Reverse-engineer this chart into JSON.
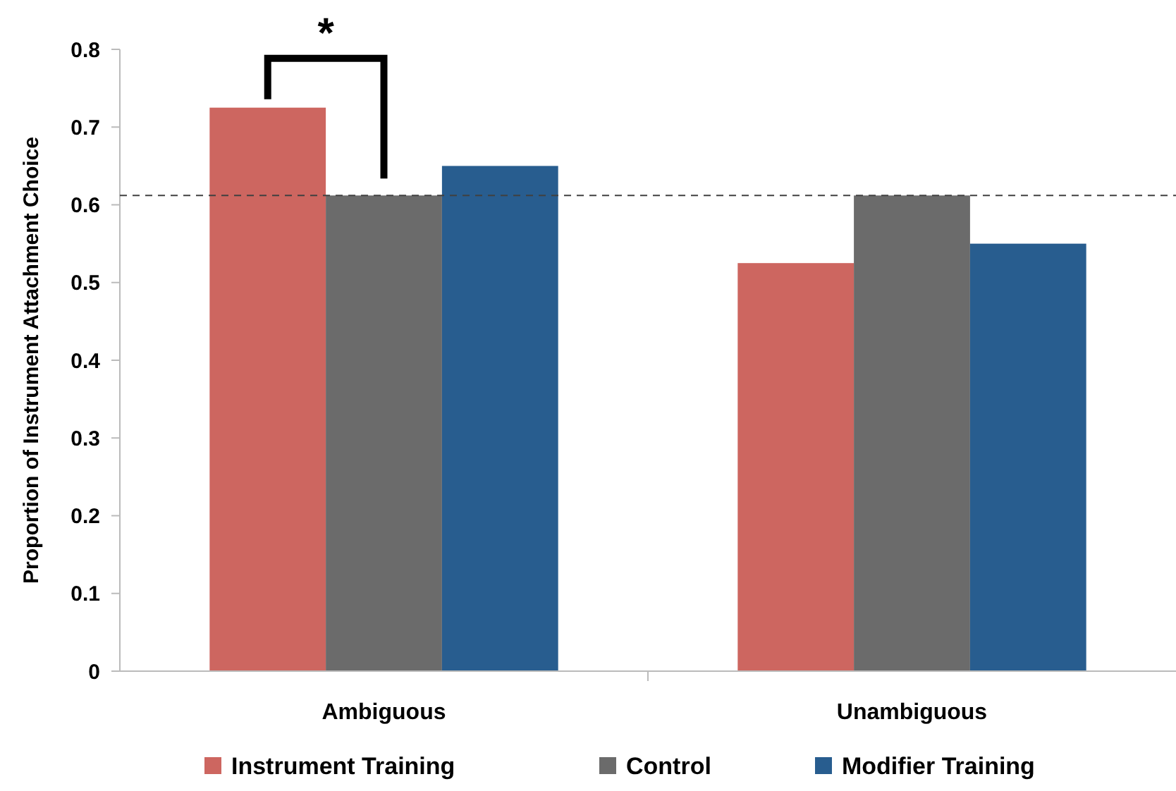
{
  "chart_data": {
    "type": "bar",
    "ylabel": "Proportion of Instrument Attachment Choice",
    "categories": [
      "Ambiguous",
      "Unambiguous"
    ],
    "series": [
      {
        "name": "Instrument Training",
        "color": "#cd6660",
        "values": [
          0.725,
          0.525
        ]
      },
      {
        "name": "Control",
        "color": "#6b6b6b",
        "values": [
          0.612,
          0.612
        ]
      },
      {
        "name": "Modifier Training",
        "color": "#285d8f",
        "values": [
          0.65,
          0.55
        ]
      }
    ],
    "ylim": [
      0,
      0.8
    ],
    "yticks": [
      0,
      0.1,
      0.2,
      0.3,
      0.4,
      0.5,
      0.6,
      0.7,
      0.8
    ],
    "grid": false,
    "legend": "bottom",
    "ref_lines": [
      {
        "axis": "y",
        "value": 0.612,
        "color": "#404040",
        "line_style": "dashed"
      }
    ],
    "annotations": [
      "*"
    ]
  }
}
